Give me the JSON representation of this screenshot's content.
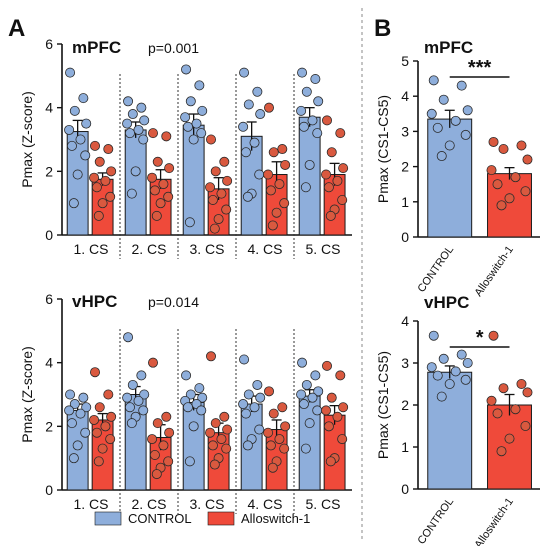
{
  "figure": {
    "panel_a_letter": "A",
    "panel_b_letter": "B"
  },
  "colors": {
    "control_fill": "#8eaedb",
    "alloswitch_fill": "#ef4a3a",
    "control_dot": "#8eaedb",
    "alloswitch_dot": "#d9593f",
    "dot_edge": "#2b2b2b",
    "bar_edge": "#1a1a1a",
    "divider": "#888888"
  },
  "legend": {
    "control_label": "CONTROL",
    "alloswitch_label": "Alloswitch-1"
  },
  "chart_data": [
    {
      "id": "A-mPFC",
      "type": "bar",
      "title": "mPFC",
      "annotation": "p=0.001",
      "xlabel": "",
      "ylabel": "Pmax (Z-score)",
      "ylim": [
        0,
        6
      ],
      "yticks": [
        0,
        2,
        4,
        6
      ],
      "categories": [
        "1. CS",
        "2. CS",
        "3. CS",
        "4. CS",
        "5. CS"
      ],
      "series": [
        {
          "name": "CONTROL",
          "values": [
            3.25,
            3.3,
            3.45,
            3.1,
            3.7
          ],
          "sem": [
            0.35,
            0.25,
            0.35,
            0.45,
            0.3
          ],
          "points": [
            [
              5.1,
              4.3,
              3.9,
              3.5,
              3.3,
              3.0,
              2.8,
              2.5,
              1.9,
              1.0
            ],
            [
              4.2,
              4.0,
              3.8,
              3.6,
              3.5,
              3.3,
              3.2,
              3.0,
              2.0,
              1.3
            ],
            [
              5.2,
              4.7,
              4.2,
              3.9,
              3.7,
              3.5,
              3.4,
              3.2,
              3.0,
              0.4
            ],
            [
              5.1,
              4.5,
              4.1,
              3.8,
              3.4,
              2.9,
              2.6,
              1.9,
              1.3,
              1.2
            ],
            [
              5.1,
              4.9,
              4.5,
              4.2,
              3.9,
              3.6,
              3.4,
              3.2,
              2.2,
              1.5
            ]
          ]
        },
        {
          "name": "Alloswitch-1",
          "values": [
            1.75,
            1.75,
            1.45,
            1.9,
            1.9
          ],
          "sem": [
            0.2,
            0.3,
            0.35,
            0.4,
            0.35
          ],
          "points": [
            [
              2.8,
              2.7,
              2.3,
              2.0,
              1.8,
              1.7,
              1.5,
              1.2,
              1.0,
              0.6
            ],
            [
              3.2,
              3.1,
              2.3,
              2.1,
              1.8,
              1.6,
              1.4,
              1.2,
              1.0,
              0.6
            ],
            [
              3.0,
              2.3,
              2.0,
              1.7,
              1.5,
              1.3,
              1.1,
              0.8,
              0.5,
              0.2
            ],
            [
              4.0,
              2.7,
              2.6,
              2.2,
              1.9,
              1.6,
              1.4,
              1.0,
              0.7,
              0.3
            ],
            [
              3.6,
              3.2,
              2.6,
              2.1,
              1.9,
              1.7,
              1.5,
              1.1,
              0.8,
              0.6
            ]
          ]
        }
      ]
    },
    {
      "id": "A-vHPC",
      "type": "bar",
      "title": "vHPC",
      "annotation": "p=0.014",
      "xlabel": "",
      "ylabel": "Pmax (Z-score)",
      "ylim": [
        0,
        6
      ],
      "yticks": [
        0,
        2,
        4,
        6
      ],
      "categories": [
        "1. CS",
        "2. CS",
        "3. CS",
        "4. CS",
        "5. CS"
      ],
      "series": [
        {
          "name": "CONTROL",
          "values": [
            2.5,
            3.0,
            2.75,
            2.7,
            2.95
          ],
          "sem": [
            0.2,
            0.25,
            0.25,
            0.25,
            0.2
          ],
          "points": [
            [
              3.0,
              2.9,
              2.7,
              2.6,
              2.5,
              2.4,
              2.1,
              1.8,
              1.4,
              1.0
            ],
            [
              4.8,
              3.6,
              3.3,
              3.0,
              2.9,
              2.8,
              2.6,
              2.5,
              2.3,
              2.1
            ],
            [
              3.6,
              3.2,
              3.0,
              2.9,
              2.8,
              2.7,
              2.6,
              2.5,
              2.0,
              0.9
            ],
            [
              4.1,
              3.3,
              3.0,
              2.9,
              2.7,
              2.6,
              2.4,
              1.9,
              1.6,
              1.4
            ],
            [
              4.0,
              3.6,
              3.3,
              3.1,
              3.0,
              2.9,
              2.7,
              2.5,
              2.1,
              1.3
            ]
          ]
        },
        {
          "name": "Alloswitch-1",
          "values": [
            2.2,
            1.65,
            1.8,
            1.9,
            2.35
          ],
          "sem": [
            0.2,
            0.4,
            0.3,
            0.3,
            0.3
          ],
          "points": [
            [
              3.7,
              3.0,
              2.6,
              2.3,
              2.2,
              2.0,
              1.8,
              1.6,
              1.3,
              0.9
            ],
            [
              4.0,
              2.3,
              2.1,
              1.8,
              1.6,
              1.4,
              1.1,
              0.9,
              0.7,
              0.5
            ],
            [
              4.2,
              2.3,
              2.1,
              1.9,
              1.8,
              1.6,
              1.4,
              1.3,
              1.0,
              0.8
            ],
            [
              3.1,
              2.6,
              2.4,
              2.0,
              1.8,
              1.6,
              1.4,
              1.3,
              0.9,
              0.7
            ],
            [
              3.9,
              3.6,
              2.9,
              2.6,
              2.5,
              2.3,
              2.0,
              1.6,
              1.0,
              0.9
            ]
          ]
        }
      ]
    },
    {
      "id": "B-mPFC",
      "type": "bar",
      "title": "mPFC",
      "annotation": "***",
      "xlabel": "",
      "ylabel": "Pmax (CS1-CS5)",
      "ylim": [
        0,
        5
      ],
      "yticks": [
        0,
        1,
        2,
        3,
        4,
        5
      ],
      "categories": [
        "CONTROL",
        "Alloswitch-1"
      ],
      "values": [
        3.35,
        1.8
      ],
      "sem": [
        0.25,
        0.17
      ],
      "points": [
        [
          4.45,
          4.3,
          3.9,
          3.6,
          3.5,
          3.3,
          3.1,
          2.9,
          2.6,
          2.3
        ],
        [
          2.7,
          2.6,
          2.5,
          2.2,
          1.9,
          1.7,
          1.5,
          1.3,
          1.1,
          0.9
        ]
      ]
    },
    {
      "id": "B-vHPC",
      "type": "bar",
      "title": "vHPC",
      "annotation": "*",
      "xlabel": "",
      "ylabel": "Pmax (CS1-CS5)",
      "ylim": [
        0,
        4
      ],
      "yticks": [
        0,
        1,
        2,
        3,
        4
      ],
      "categories": [
        "CONTROL",
        "Alloswitch-1"
      ],
      "values": [
        2.78,
        2.0
      ],
      "sem": [
        0.15,
        0.25
      ],
      "points": [
        [
          3.65,
          3.2,
          3.1,
          3.0,
          2.9,
          2.8,
          2.7,
          2.6,
          2.5,
          2.2
        ],
        [
          3.65,
          2.5,
          2.4,
          2.3,
          2.1,
          1.9,
          1.8,
          1.5,
          1.2,
          0.9
        ]
      ]
    }
  ]
}
